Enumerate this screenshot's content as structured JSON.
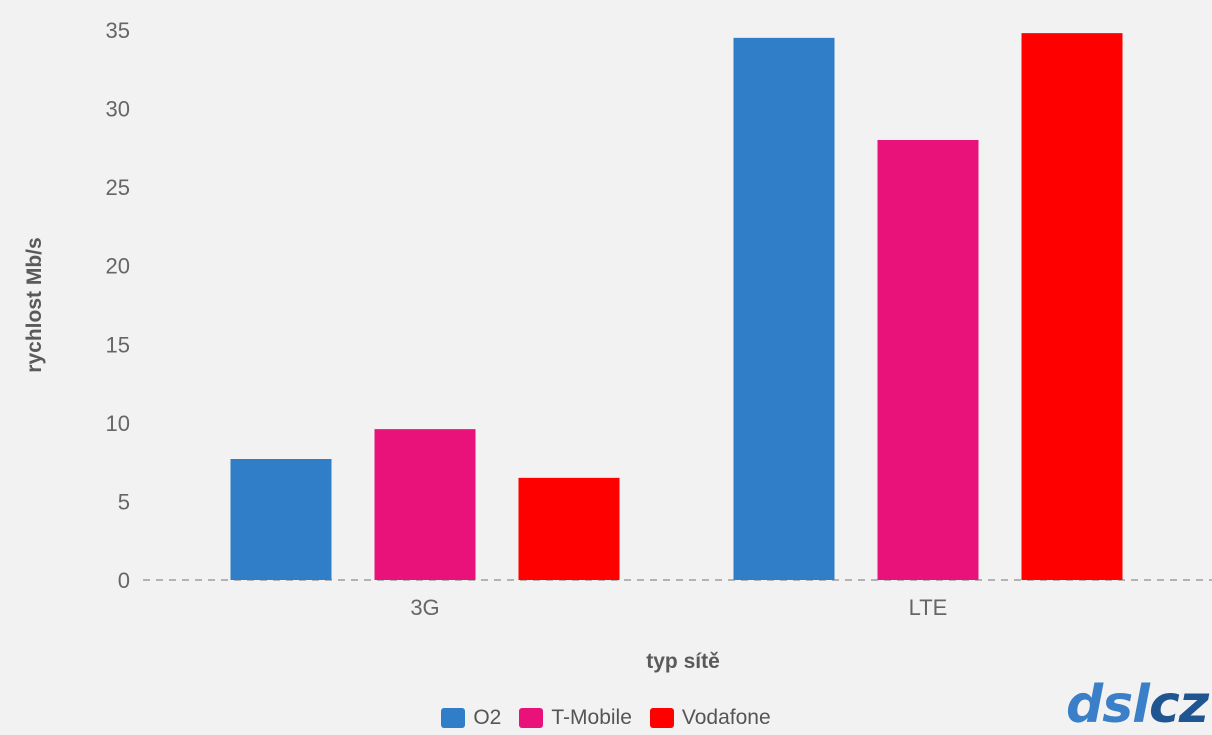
{
  "chart_data": {
    "type": "bar",
    "categories": [
      "3G",
      "LTE"
    ],
    "series": [
      {
        "name": "O2",
        "color": "#2f7ec7",
        "values": [
          7.7,
          34.5
        ]
      },
      {
        "name": "T-Mobile",
        "color": "#e8127a",
        "values": [
          9.6,
          28.0
        ]
      },
      {
        "name": "Vodafone",
        "color": "#ff0000",
        "values": [
          6.5,
          34.8
        ]
      }
    ],
    "xlabel": "typ sítě",
    "ylabel": "rychlost Mb/s",
    "ylim": [
      0,
      35
    ],
    "yticks": [
      0,
      5,
      10,
      15,
      20,
      25,
      30,
      35
    ],
    "grid": false,
    "baseline": "dashed",
    "legend_position": "bottom-center"
  },
  "logo": {
    "text": "dsl.cz"
  }
}
